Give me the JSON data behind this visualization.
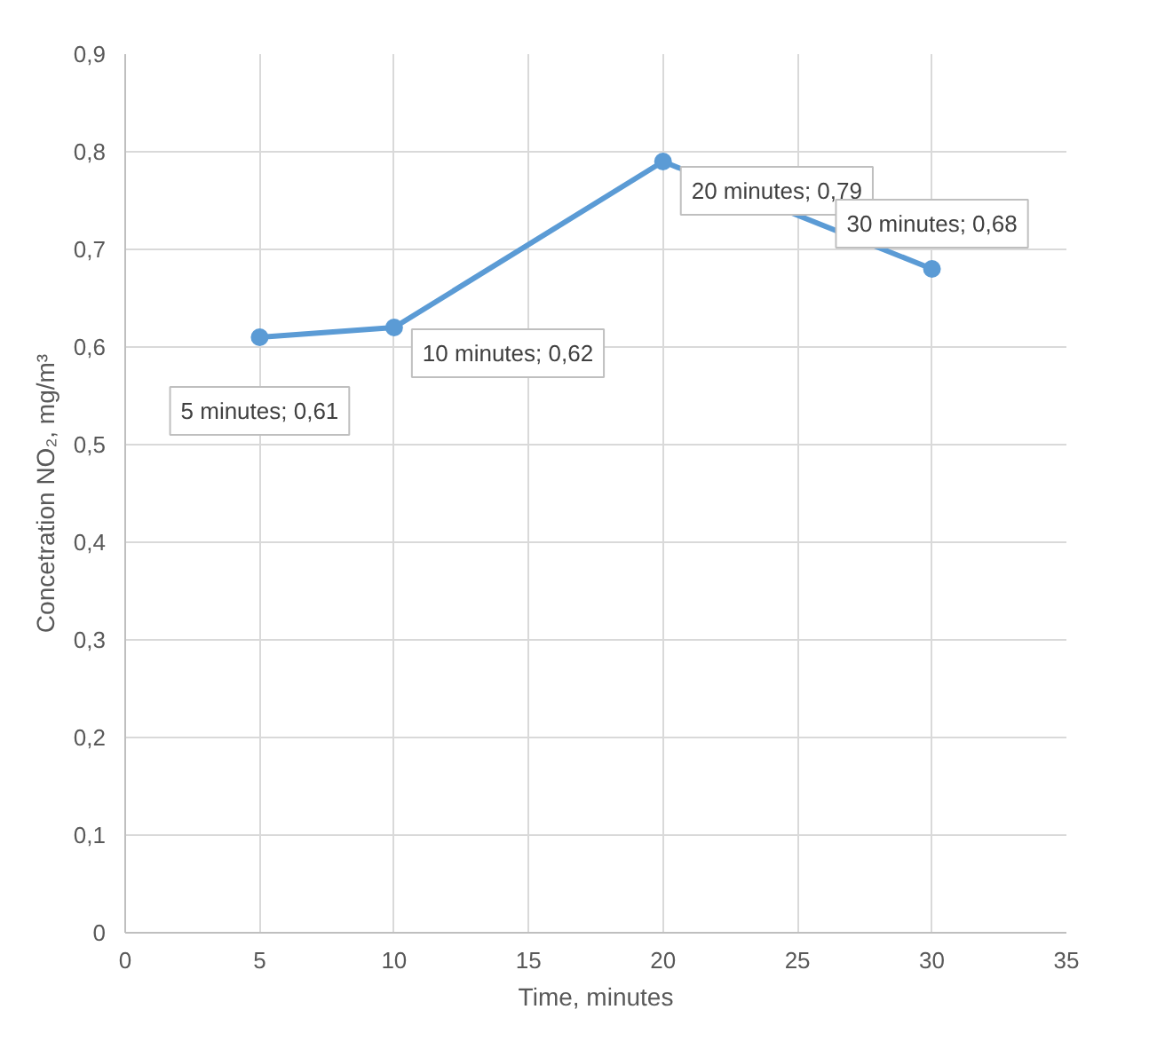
{
  "chart_data": {
    "type": "line",
    "xlabel": "Time, minutes",
    "ylabel": "Concetration NO₂, mg/m³",
    "x": [
      5,
      10,
      20,
      30
    ],
    "series": [
      {
        "color": "#5b9bd5",
        "values": [
          0.61,
          0.62,
          0.79,
          0.68
        ],
        "value_labels": [
          "5 minutes; 0,61",
          "10 minutes; 0,62",
          "20 minutes; 0,79",
          "30 minutes; 0,68"
        ]
      }
    ],
    "xlim": [
      0,
      35
    ],
    "xticks": [
      0,
      5,
      10,
      15,
      20,
      25,
      30,
      35
    ],
    "ylim": [
      0,
      0.9
    ],
    "yticks": [
      0,
      {
        "value": 0.1,
        "label": "0,1"
      },
      {
        "value": 0.2,
        "label": "0,2"
      },
      {
        "value": 0.3,
        "label": "0,3"
      },
      {
        "value": 0.4,
        "label": "0,4"
      },
      {
        "value": 0.5,
        "label": "0,5"
      },
      {
        "value": 0.6,
        "label": "0,6"
      },
      {
        "value": 0.7,
        "label": "0,7"
      },
      {
        "value": 0.8,
        "label": "0,8"
      },
      {
        "value": 0.9,
        "label": "0,9"
      }
    ],
    "grid": true,
    "marker": "circle",
    "line_style": "solid"
  }
}
